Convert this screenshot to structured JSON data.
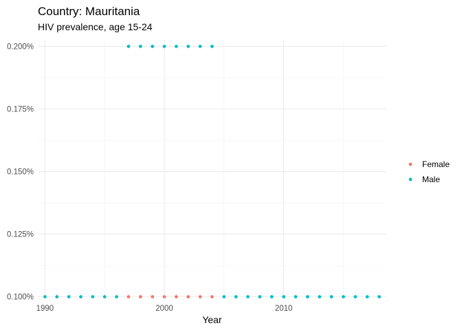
{
  "chart_data": {
    "type": "scatter",
    "title": "Country: Mauritania",
    "subtitle": "HIV prevalence, age 15-24",
    "xlabel": "Year",
    "ylabel": "",
    "xlim": [
      1989.4,
      2018.6
    ],
    "ylim": [
      0.0999,
      0.2026
    ],
    "x_ticks": [
      1990,
      2000,
      2010
    ],
    "x_ticks_labels": [
      "1990",
      "2000",
      "2010"
    ],
    "y_ticks": [
      0.1,
      0.125,
      0.15,
      0.175,
      0.2
    ],
    "y_ticks_labels": [
      "0.100%",
      "0.125%",
      "0.150%",
      "0.175%",
      "0.200%"
    ],
    "grid": true,
    "legend_position": "right",
    "series": [
      {
        "name": "Female",
        "color": "#F8766D",
        "points": [
          {
            "x": 1997,
            "y": 0.1
          },
          {
            "x": 1998,
            "y": 0.1
          },
          {
            "x": 1999,
            "y": 0.1
          },
          {
            "x": 2000,
            "y": 0.1
          },
          {
            "x": 2001,
            "y": 0.1
          },
          {
            "x": 2002,
            "y": 0.1
          },
          {
            "x": 2003,
            "y": 0.1
          },
          {
            "x": 2004,
            "y": 0.1
          }
        ]
      },
      {
        "name": "Male",
        "color": "#00BFC4",
        "points": [
          {
            "x": 1990,
            "y": 0.1
          },
          {
            "x": 1991,
            "y": 0.1
          },
          {
            "x": 1992,
            "y": 0.1
          },
          {
            "x": 1993,
            "y": 0.1
          },
          {
            "x": 1994,
            "y": 0.1
          },
          {
            "x": 1995,
            "y": 0.1
          },
          {
            "x": 1996,
            "y": 0.1
          },
          {
            "x": 1997,
            "y": 0.2
          },
          {
            "x": 1998,
            "y": 0.2
          },
          {
            "x": 1999,
            "y": 0.2
          },
          {
            "x": 2000,
            "y": 0.2
          },
          {
            "x": 2001,
            "y": 0.2
          },
          {
            "x": 2002,
            "y": 0.2
          },
          {
            "x": 2003,
            "y": 0.2
          },
          {
            "x": 2004,
            "y": 0.2
          },
          {
            "x": 2005,
            "y": 0.1
          },
          {
            "x": 2006,
            "y": 0.1
          },
          {
            "x": 2007,
            "y": 0.1
          },
          {
            "x": 2008,
            "y": 0.1
          },
          {
            "x": 2009,
            "y": 0.1
          },
          {
            "x": 2010,
            "y": 0.1
          },
          {
            "x": 2011,
            "y": 0.1
          },
          {
            "x": 2012,
            "y": 0.1
          },
          {
            "x": 2013,
            "y": 0.1
          },
          {
            "x": 2014,
            "y": 0.1
          },
          {
            "x": 2015,
            "y": 0.1
          },
          {
            "x": 2016,
            "y": 0.1
          },
          {
            "x": 2017,
            "y": 0.1
          },
          {
            "x": 2018,
            "y": 0.1
          }
        ]
      }
    ]
  }
}
